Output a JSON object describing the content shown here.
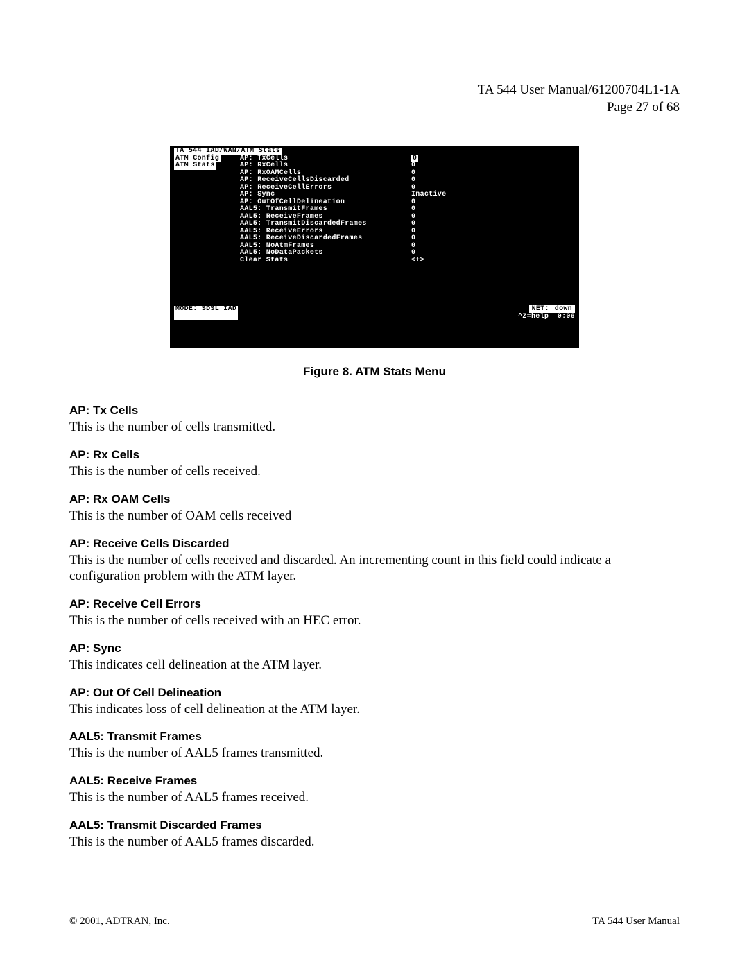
{
  "header": {
    "line1": "TA 544 User Manual/61200704L1-1A",
    "line2": "Page 27 of 68"
  },
  "terminal": {
    "breadcrumb_white": "TA 544 IAD/WAN/ATM Stats",
    "sidebar": [
      {
        "label": "ATM Config",
        "selected": true
      },
      {
        "label": "ATM Stats",
        "selected": true
      }
    ],
    "rows": [
      {
        "label": "AP: TxCells",
        "value": "0",
        "hilite": true
      },
      {
        "label": "AP: RxCells",
        "value": "0"
      },
      {
        "label": "AP: RxOAMCells",
        "value": "0"
      },
      {
        "label": "AP: ReceiveCellsDiscarded",
        "value": "0"
      },
      {
        "label": "AP: ReceiveCellErrors",
        "value": "0"
      },
      {
        "label": "AP: Sync",
        "value": "Inactive"
      },
      {
        "label": "AP: OutOfCellDelineation",
        "value": "0"
      },
      {
        "label": "AAL5: TransmitFrames",
        "value": "0"
      },
      {
        "label": "AAL5: ReceiveFrames",
        "value": "0"
      },
      {
        "label": "AAL5: TransmitDiscardedFrames",
        "value": "0"
      },
      {
        "label": "AAL5: ReceiveErrors",
        "value": "0"
      },
      {
        "label": "AAL5: ReceiveDiscardedFrames",
        "value": "0"
      },
      {
        "label": "AAL5: NoAtmFrames",
        "value": "0"
      },
      {
        "label": "AAL5: NoDataPackets",
        "value": "0"
      },
      {
        "label": "Clear Stats",
        "value": "<+>"
      }
    ],
    "mode_text": "MODE: SDSL IAD",
    "net_label": "NET:",
    "net_status": "down",
    "help_text": "^Z=help",
    "time_text": "0:06"
  },
  "figure_caption": "Figure 8.  ATM Stats Menu",
  "sections": [
    {
      "title": "AP: Tx Cells",
      "body": "This is the number of cells transmitted."
    },
    {
      "title": "AP: Rx Cells",
      "body": "This is the number of cells received."
    },
    {
      "title": "AP: Rx OAM Cells",
      "body": "This is the number of OAM cells received"
    },
    {
      "title": "AP: Receive Cells Discarded",
      "body": "This is the number of cells received and discarded. An incrementing count in this field could indicate a configuration problem with the ATM layer."
    },
    {
      "title": "AP: Receive Cell Errors",
      "body": " This is the number of cells received with an HEC error."
    },
    {
      "title": "AP: Sync",
      "body": "This indicates cell delineation at the ATM layer."
    },
    {
      "title": "AP: Out Of Cell Delineation",
      "body": "This indicates loss of cell delineation at the ATM layer."
    },
    {
      "title": "AAL5: Transmit Frames",
      "body": "This is the number of AAL5 frames transmitted."
    },
    {
      "title": "AAL5: Receive Frames",
      "body": "This is the number of AAL5 frames received."
    },
    {
      "title": "AAL5: Transmit Discarded Frames",
      "body": "This is the number of AAL5 frames discarded."
    }
  ],
  "footer": {
    "left": "© 2001, ADTRAN, Inc.",
    "right": "TA 544 User Manual"
  }
}
